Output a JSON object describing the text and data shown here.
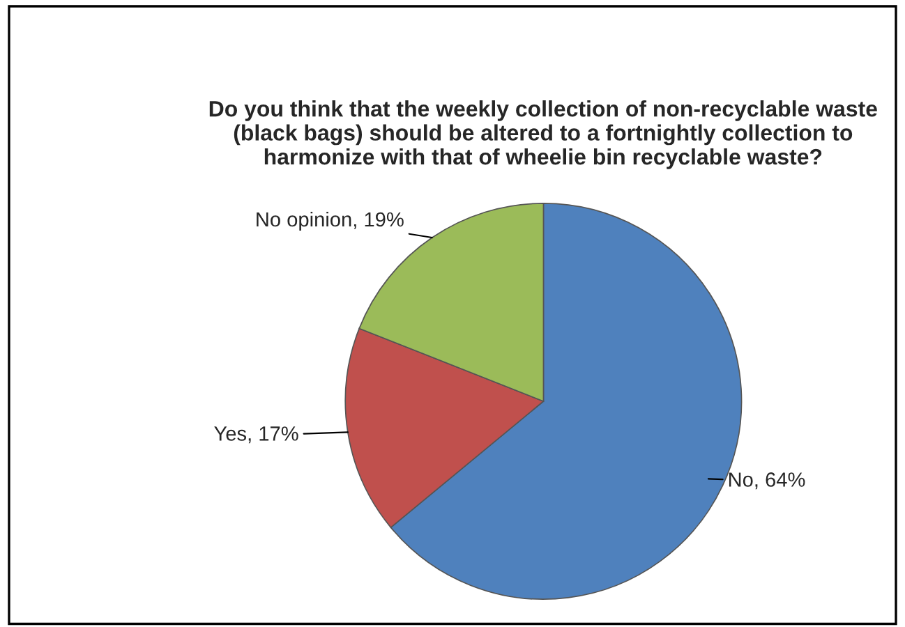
{
  "chart_data": {
    "type": "pie",
    "title": "Do you think that the weekly collection of non-recyclable waste (black bags) should be altered to a fortnightly collection to harmonize with that of wheelie bin recyclable waste?",
    "categories": [
      "No",
      "Yes",
      "No opinion"
    ],
    "values": [
      64,
      17,
      19
    ],
    "value_labels": [
      "64%",
      "17%",
      "19%"
    ],
    "colors": [
      "#4f81bd",
      "#c0504d",
      "#9bbb59"
    ],
    "legend": false
  }
}
